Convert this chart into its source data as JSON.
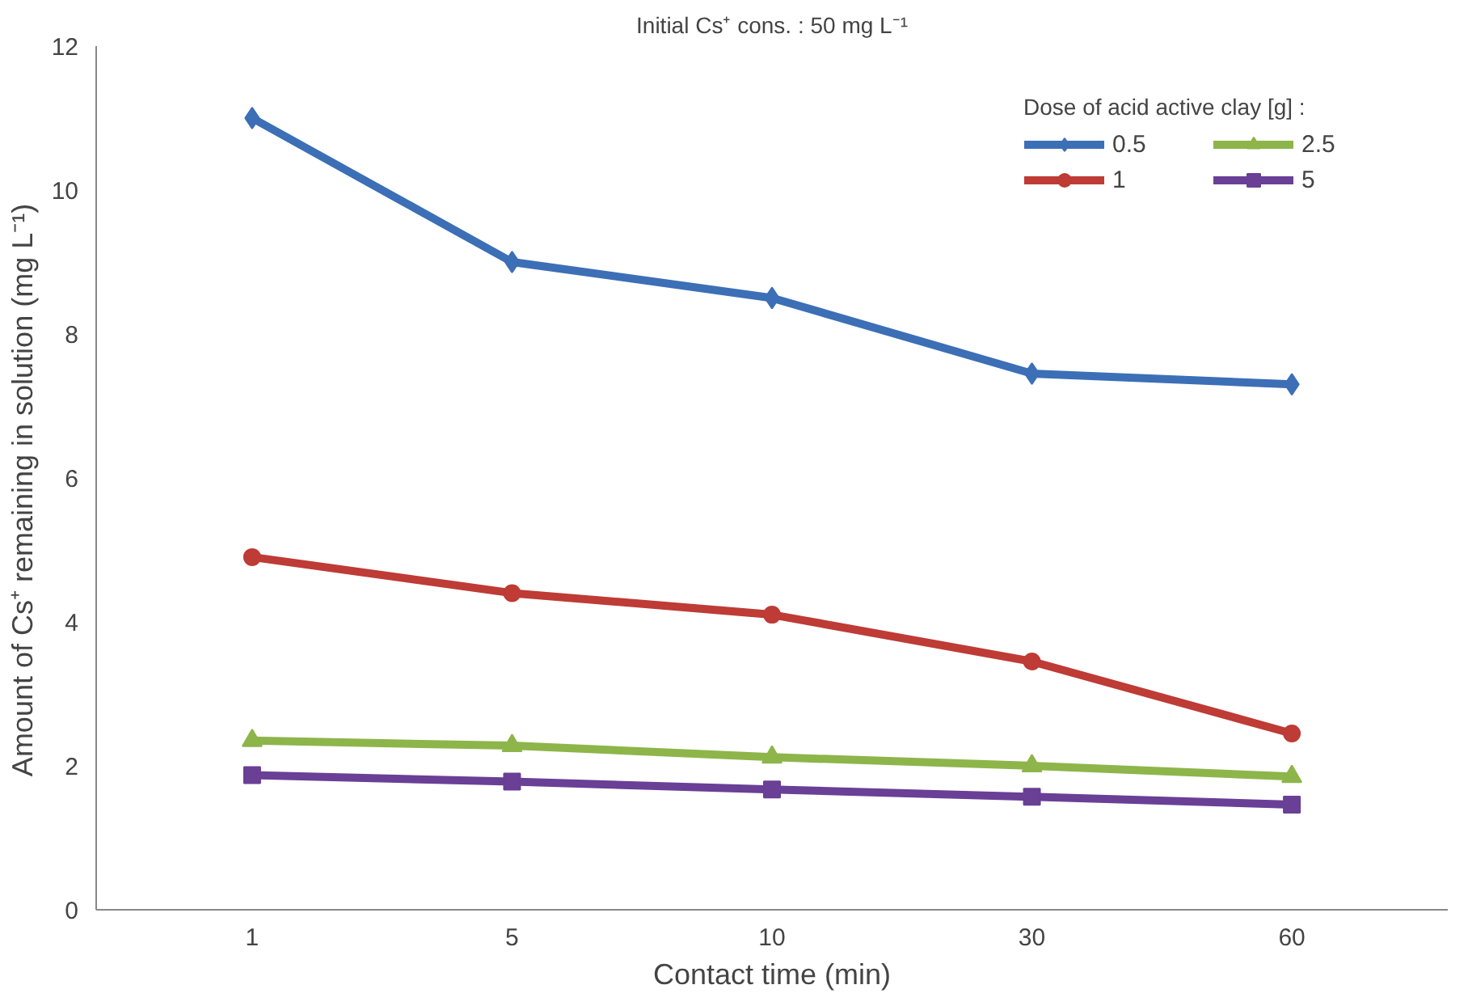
{
  "chart_data": {
    "type": "line",
    "xlabel": "Contact time (min)",
    "ylabel": "Amount  of  Cs⁺ remaining in solution (mg  L⁻¹)",
    "legend_title": "Dose of acid active clay [g] :",
    "annotations": [
      "Initial Cs⁺ cons. : 50 mg L⁻¹"
    ],
    "categories": [
      "1",
      "5",
      "10",
      "30",
      "60"
    ],
    "series": [
      {
        "name": "0.5",
        "color": "#3c6fb6",
        "marker": "diamond",
        "values": [
          11.0,
          9.0,
          8.5,
          7.45,
          7.3
        ]
      },
      {
        "name": "1",
        "color": "#be3b36",
        "marker": "circle",
        "values": [
          4.9,
          4.4,
          4.1,
          3.45,
          2.45
        ]
      },
      {
        "name": "2.5",
        "color": "#8db54a",
        "marker": "triangle",
        "values": [
          2.35,
          2.28,
          2.12,
          2.0,
          1.85
        ]
      },
      {
        "name": "5",
        "color": "#6a3f96",
        "marker": "square",
        "values": [
          1.87,
          1.78,
          1.67,
          1.57,
          1.46
        ]
      }
    ],
    "ylim": [
      0,
      12
    ],
    "yticks": [
      0,
      2,
      4,
      6,
      8,
      10,
      12
    ],
    "grid": false,
    "legend": "top right",
    "line_style": "solid"
  }
}
